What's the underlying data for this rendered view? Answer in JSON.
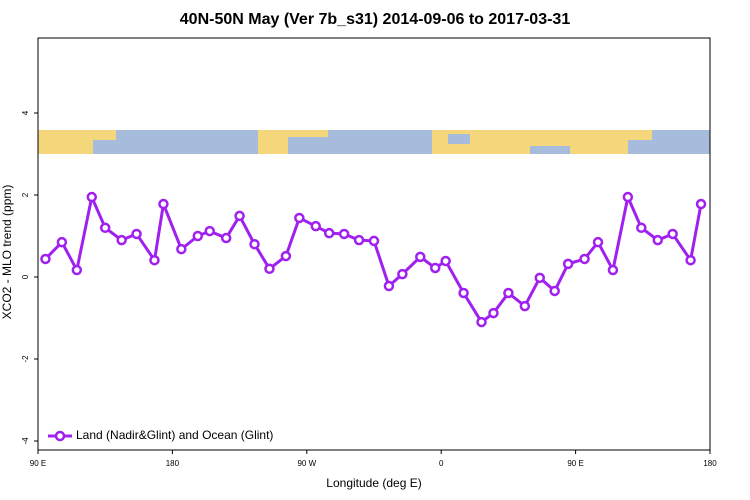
{
  "chart_data": {
    "type": "line",
    "title": "40N-50N May (Ver 7b_s31)   2014-09-06 to 2017-03-31",
    "x_label": "Longitude (deg E)",
    "y_label": "XCO2 - MLO trend (ppm)",
    "xlim": [
      90,
      540
    ],
    "ylim": [
      -4.22,
      5.83
    ],
    "xticks": [
      {
        "value": 90,
        "label": "90 E"
      },
      {
        "value": 180,
        "label": "180"
      },
      {
        "value": 270,
        "label": "90 W"
      },
      {
        "value": 360,
        "label": "0"
      },
      {
        "value": 450,
        "label": "90 E"
      },
      {
        "value": 540,
        "label": "180"
      }
    ],
    "yticks": [
      -4,
      -2,
      0,
      2,
      4
    ],
    "legend": "bottom-left",
    "series": [
      {
        "name": "Land (Nadir&Glint) and Ocean (Glint)",
        "color": "#a020f0",
        "x": [
          95,
          106,
          116,
          126,
          135,
          146,
          156,
          168,
          174,
          186,
          197,
          205,
          216,
          225,
          235,
          245,
          256,
          265,
          276,
          285,
          295,
          305,
          315,
          325,
          334,
          346,
          356,
          363,
          375,
          387,
          395,
          405,
          416,
          426,
          436,
          445,
          456,
          465,
          475,
          485,
          494,
          505,
          515,
          527,
          534
        ],
        "values": [
          0.44,
          0.85,
          0.17,
          1.95,
          1.2,
          0.9,
          1.05,
          0.41,
          1.78,
          0.68,
          1.0,
          1.12,
          0.95,
          1.49,
          0.8,
          0.2,
          0.51,
          1.44,
          1.24,
          1.07,
          1.05,
          0.9,
          0.88,
          -0.22,
          0.07,
          0.49,
          0.22,
          0.39,
          -0.39,
          -1.1,
          -0.88,
          -0.39,
          -0.71,
          -0.02,
          -0.34,
          0.32,
          0.44,
          0.85,
          0.17,
          1.95,
          1.2,
          0.9,
          1.05,
          0.41,
          1.78
        ]
      }
    ]
  }
}
